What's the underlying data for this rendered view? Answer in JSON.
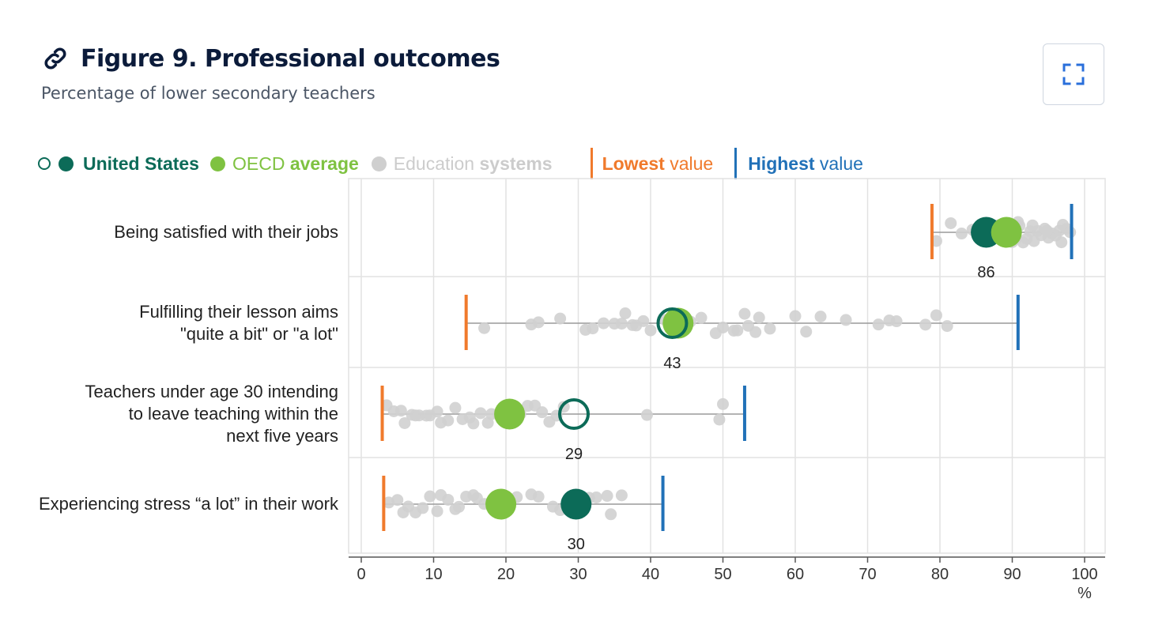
{
  "header": {
    "title": "Figure 9. Professional outcomes",
    "subtitle": "Percentage of lower secondary teachers",
    "link_icon": "link-icon",
    "expand_icon": "expand-icon"
  },
  "legend": {
    "us_label": "United States",
    "oecd_prefix": "OECD ",
    "oecd_bold": "average",
    "systems_prefix": "Education ",
    "systems_bold": "systems",
    "lowest_bold": "Lowest",
    "lowest_suffix": " value",
    "highest_bold": "Highest",
    "highest_suffix": " value"
  },
  "colors": {
    "us": "#0c6b58",
    "oecd": "#7fc241",
    "systems": "#d0d0d0",
    "lowest": "#f07a2c",
    "highest": "#2171b8",
    "grid": "#e2e2e2",
    "axis": "#555555"
  },
  "chart_data": {
    "type": "dot-range",
    "xlabel": "%",
    "xlim": [
      0,
      100
    ],
    "xticks": [
      0,
      10,
      20,
      30,
      40,
      50,
      60,
      70,
      80,
      90,
      100
    ],
    "rows": [
      {
        "label_lines": [
          "Being satisfied with their jobs"
        ],
        "lowest": 78.9,
        "highest": 98.2,
        "oecd": 89.2,
        "us": 86.4,
        "us_hollow": false,
        "us_label": "86",
        "systems": [
          79.5,
          81.5,
          83.0,
          84.5,
          85.5,
          87.0,
          88.0,
          88.5,
          89.0,
          90.0,
          90.5,
          91.0,
          91.5,
          92.0,
          92.5,
          93.0,
          93.5,
          94.0,
          94.5,
          95.0,
          95.5,
          96.0,
          96.5,
          97.0,
          97.5,
          98.0,
          90.8,
          92.8,
          94.8,
          96.8
        ]
      },
      {
        "label_lines": [
          "Fulfilling their lesson aims",
          "\"quite a bit\" or \"a lot\""
        ],
        "lowest": 14.5,
        "highest": 90.8,
        "oecd": 43.8,
        "us": 43.0,
        "us_hollow": true,
        "us_label": "43",
        "systems": [
          17.0,
          23.5,
          24.5,
          27.5,
          31.0,
          32.0,
          33.5,
          35.0,
          36.0,
          36.5,
          37.5,
          38.0,
          39.0,
          40.0,
          42.0,
          45.5,
          47.0,
          49.0,
          50.0,
          51.5,
          52.0,
          53.0,
          53.5,
          54.5,
          55.0,
          56.5,
          60.0,
          61.5,
          63.5,
          67.0,
          71.5,
          73.0,
          74.0,
          78.0,
          79.5,
          81.0
        ]
      },
      {
        "label_lines": [
          "Teachers under age 30 intending",
          "to leave teaching within the",
          "next five years"
        ],
        "lowest": 2.9,
        "highest": 53.0,
        "oecd": 20.5,
        "us": 29.4,
        "us_hollow": true,
        "us_label": "29",
        "systems": [
          3.5,
          4.5,
          5.5,
          6.0,
          7.0,
          7.5,
          8.0,
          9.0,
          9.5,
          10.5,
          11.0,
          12.0,
          13.0,
          14.0,
          15.0,
          15.5,
          16.5,
          17.5,
          18.0,
          19.0,
          22.0,
          23.0,
          24.0,
          25.0,
          26.0,
          27.0,
          28.0,
          39.5,
          49.5,
          50.0
        ]
      },
      {
        "label_lines": [
          "Experiencing stress “a lot” in their work"
        ],
        "lowest": 3.1,
        "highest": 41.7,
        "oecd": 19.3,
        "us": 29.7,
        "us_hollow": false,
        "us_label": "30",
        "systems": [
          3.8,
          5.0,
          5.8,
          6.5,
          7.5,
          8.5,
          9.5,
          10.5,
          11.0,
          12.0,
          13.0,
          13.5,
          14.5,
          15.5,
          16.0,
          17.0,
          18.0,
          21.5,
          23.5,
          24.5,
          26.5,
          27.5,
          31.5,
          32.5,
          34.0,
          34.5,
          36.0
        ]
      }
    ]
  }
}
